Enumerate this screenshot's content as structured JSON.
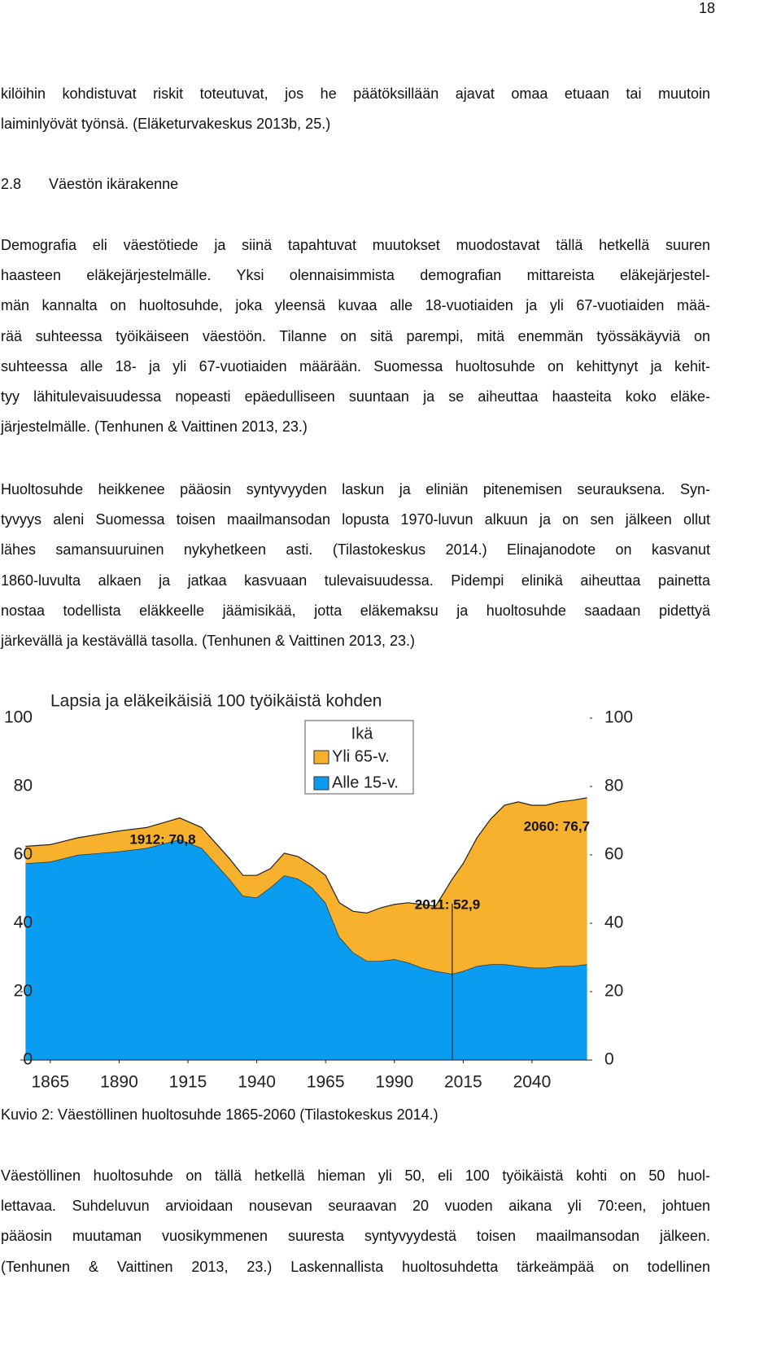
{
  "page_number": "18",
  "text_top": [
    [
      "kilöihin kohdistuvat riskit toteutuvat, jos he päätöksillään ajavat omaa etuaan tai muutoin",
      "laiminlyövät työnsä. (Eläketurvakeskus 2013b, 25.)"
    ]
  ],
  "heading": {
    "number": "2.8",
    "title": "Väestön ikärakenne"
  },
  "text_middle": [
    [
      "Demografia eli väestötiede ja siinä tapahtuvat muutokset muodostavat tällä hetkellä suuren",
      "haasteen eläkejärjestelmälle. Yksi olennaisimmista demografian mittareista eläkejärjestel-",
      "män kannalta on huoltosuhde, joka yleensä kuvaa alle 18-vuotiaiden ja yli 67-vuotiaiden mää-",
      "rää suhteessa työikäiseen väestöön. Tilanne on sitä parempi, mitä enemmän työssäkäyviä on",
      "suhteessa alle 18- ja yli 67-vuotiaiden määrään. Suomessa huoltosuhde on kehittynyt ja kehit-",
      "tyy lähitulevaisuudessa nopeasti epäedulliseen suuntaan ja se aiheuttaa haasteita koko eläke-",
      "järjestelmälle. (Tenhunen & Vaittinen 2013, 23.)"
    ],
    [
      "Huoltosuhde heikkenee pääosin syntyvyyden laskun ja eliniän pitenemisen seurauksena. Syn-",
      "tyvyys aleni Suomessa toisen maailmansodan lopusta 1970-luvun alkuun ja on sen jälkeen ollut",
      "lähes samansuuruinen nykyhetkeen asti. (Tilastokeskus 2014.) Elinajanodote on kasvanut",
      "1860-luvulta alkaen ja jatkaa kasvuaan tulevaisuudessa. Pidempi elinikä aiheuttaa painetta",
      "nostaa todellista eläkkeelle jäämisikää, jotta eläkemaksu ja huoltosuhde saadaan pidettyä",
      "järkevällä ja kestävällä tasolla. (Tenhunen & Vaittinen 2013, 23.)"
    ]
  ],
  "chart_data": {
    "type": "stacked_area",
    "title": "Lapsia ja eläkeikäisiä 100 työikäistä kohden",
    "legend_title": "Ikä",
    "x": [
      1856,
      1865,
      1875,
      1890,
      1900,
      1912,
      1920,
      1930,
      1935,
      1940,
      1945,
      1950,
      1955,
      1960,
      1965,
      1970,
      1975,
      1980,
      1985,
      1990,
      1995,
      2000,
      2005,
      2011,
      2015,
      2020,
      2025,
      2030,
      2035,
      2040,
      2045,
      2050,
      2055,
      2060
    ],
    "series": [
      {
        "name": "Alle 15-v.",
        "color": "#0a9cf0",
        "values": [
          57.5,
          58,
          60,
          61,
          62,
          64.5,
          62,
          53,
          48,
          47.5,
          50.5,
          54,
          53,
          50.5,
          46,
          36,
          31.5,
          29,
          29,
          29.5,
          28.5,
          27,
          26,
          25.2,
          26,
          27.5,
          28,
          28,
          27.5,
          27,
          27,
          27.5,
          27.5,
          28
        ]
      },
      {
        "name": "Yli 65-v.",
        "color": "#f8b12c",
        "values": [
          5,
          5,
          5,
          6,
          6,
          6.3,
          6,
          6,
          6,
          6.5,
          5.5,
          6.5,
          6.5,
          6.5,
          8,
          10,
          12,
          14,
          15.5,
          16,
          17.5,
          18.5,
          19,
          27.7,
          31.5,
          37.5,
          42.5,
          46.5,
          48,
          47.5,
          47.5,
          48,
          48.5,
          48.7
        ]
      }
    ],
    "annotations": [
      "1912: 70,8",
      "2011: 52,9",
      "2060: 76,7"
    ],
    "xlim": [
      1855,
      2061
    ],
    "xticks": [
      1865,
      1890,
      1915,
      1940,
      1965,
      1990,
      2015,
      2040
    ],
    "ylim": [
      0,
      100
    ],
    "yticks": [
      0,
      20,
      40,
      60,
      80,
      100
    ],
    "y2lim": [
      0,
      100
    ],
    "y2ticks": [
      0,
      20,
      40,
      60,
      80,
      100
    ],
    "grid": false
  },
  "caption": "Kuvio 2: Väestöllinen huoltosuhde 1865-2060 (Tilastokeskus 2014.)",
  "text_bottom": [
    [
      "Väestöllinen huoltosuhde on tällä hetkellä hieman yli 50, eli 100 työikäistä kohti on 50 huol-",
      "lettavaa. Suhdeluvun arvioidaan nousevan seuraavan 20 vuoden aikana yli 70:een, johtuen",
      "pääosin muutaman vuosikymmenen suuresta syntyvyydestä toisen maailmansodan jälkeen.",
      "(Tenhunen & Vaittinen 2013, 23.) Laskennallista huoltosuhdetta tärkeämpää on todellinen"
    ]
  ]
}
